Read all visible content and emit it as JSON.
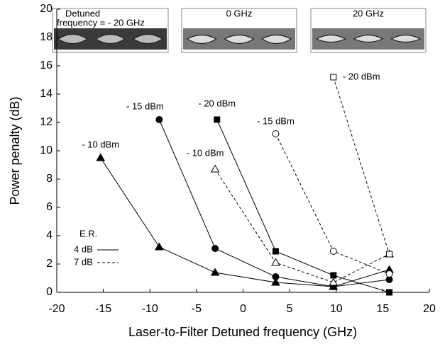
{
  "chart_data": {
    "type": "line",
    "x_label": "Laser-to-Filter Detuned frequency (GHz)",
    "y_label": "Power penalty (dB)",
    "xlim": [
      -20,
      20
    ],
    "xticks": [
      -20,
      -15,
      -10,
      -5,
      0,
      5,
      10,
      15,
      20
    ],
    "ylim": [
      0,
      20
    ],
    "yticks": [
      0,
      2,
      4,
      6,
      8,
      10,
      12,
      14,
      16,
      18,
      20
    ],
    "color": "#000000",
    "insets": [
      {
        "label": [
          "Detuned",
          "frequency = - 20 GHz"
        ]
      },
      {
        "label": [
          "0 GHz"
        ]
      },
      {
        "label": [
          "20 GHz"
        ]
      }
    ],
    "legend": {
      "title": "E.R.",
      "entries": [
        {
          "label": "4 dB",
          "line_style": "solid"
        },
        {
          "label": "7 dB",
          "line_style": "dashed"
        }
      ]
    },
    "series": [
      {
        "name": "- 10 dBm",
        "marker": "triangle",
        "fill": "filled",
        "line_style": "solid",
        "x": [
          -15.3,
          -9,
          -3,
          3.5,
          9.7,
          15.7
        ],
        "values": [
          9.5,
          3.2,
          1.4,
          0.7,
          0.4,
          1.6
        ]
      },
      {
        "name": "- 15 dBm",
        "marker": "circle",
        "fill": "filled",
        "line_style": "solid",
        "x": [
          -9,
          -3,
          3.5,
          9.7,
          15.7
        ],
        "values": [
          12.2,
          3.1,
          1.1,
          0.4,
          0.9
        ]
      },
      {
        "name": "- 20 dBm",
        "marker": "square",
        "fill": "filled",
        "line_style": "solid",
        "x": [
          -2.8,
          3.5,
          9.7,
          15.7
        ],
        "values": [
          12.2,
          2.9,
          1.2,
          0
        ]
      },
      {
        "name": "- 10 dBm",
        "marker": "triangle",
        "fill": "open",
        "line_style": "dashed",
        "x": [
          -3,
          3.5,
          9.7,
          15.7
        ],
        "values": [
          8.7,
          2.1,
          0.7,
          2.7
        ]
      },
      {
        "name": "- 15 dBm",
        "marker": "circle",
        "fill": "open",
        "line_style": "dashed",
        "x": [
          3.5,
          9.7,
          15.7
        ],
        "values": [
          11.2,
          2.9,
          1.3
        ]
      },
      {
        "name": "- 20 dBm",
        "marker": "square",
        "fill": "open",
        "line_style": "dashed",
        "x": [
          9.7,
          15.7
        ],
        "values": [
          15.2,
          2.7
        ]
      }
    ]
  }
}
